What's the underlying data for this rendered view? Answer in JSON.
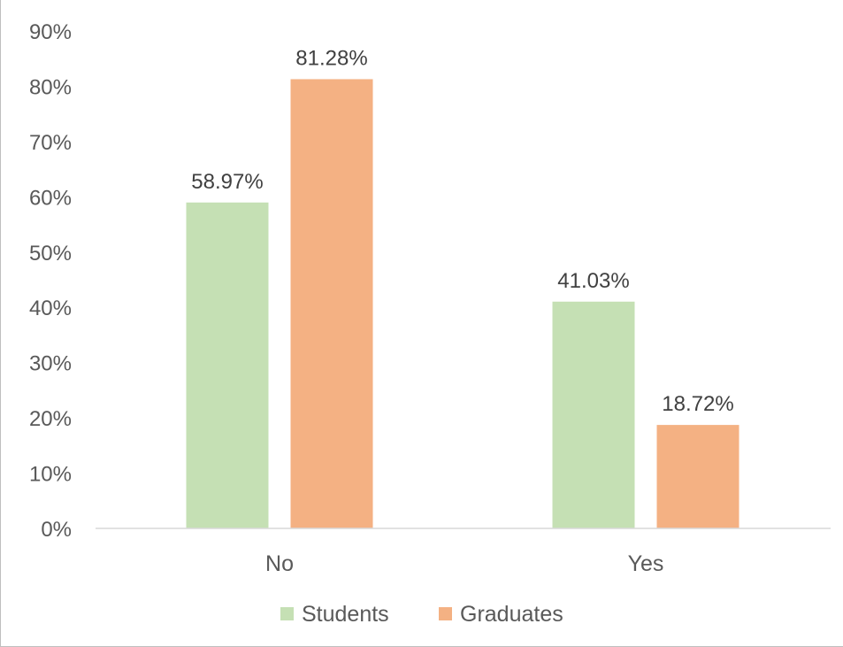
{
  "chart_data": {
    "type": "bar",
    "categories": [
      "No",
      "Yes"
    ],
    "series": [
      {
        "name": "Students",
        "values": [
          58.97,
          41.03
        ],
        "color": "#c5e0b4"
      },
      {
        "name": "Graduates",
        "values": [
          81.28,
          18.72
        ],
        "color": "#f4b183"
      }
    ],
    "data_labels": [
      [
        "58.97%",
        "41.03%"
      ],
      [
        "81.28%",
        "18.72%"
      ]
    ],
    "ylim": [
      0,
      90
    ],
    "yticks": [
      0,
      10,
      20,
      30,
      40,
      50,
      60,
      70,
      80,
      90
    ],
    "ytick_labels": [
      "0%",
      "10%",
      "20%",
      "30%",
      "40%",
      "50%",
      "60%",
      "70%",
      "80%",
      "90%"
    ],
    "grid": false,
    "legend_position": "bottom",
    "axis_color": "#d9d9d9"
  }
}
